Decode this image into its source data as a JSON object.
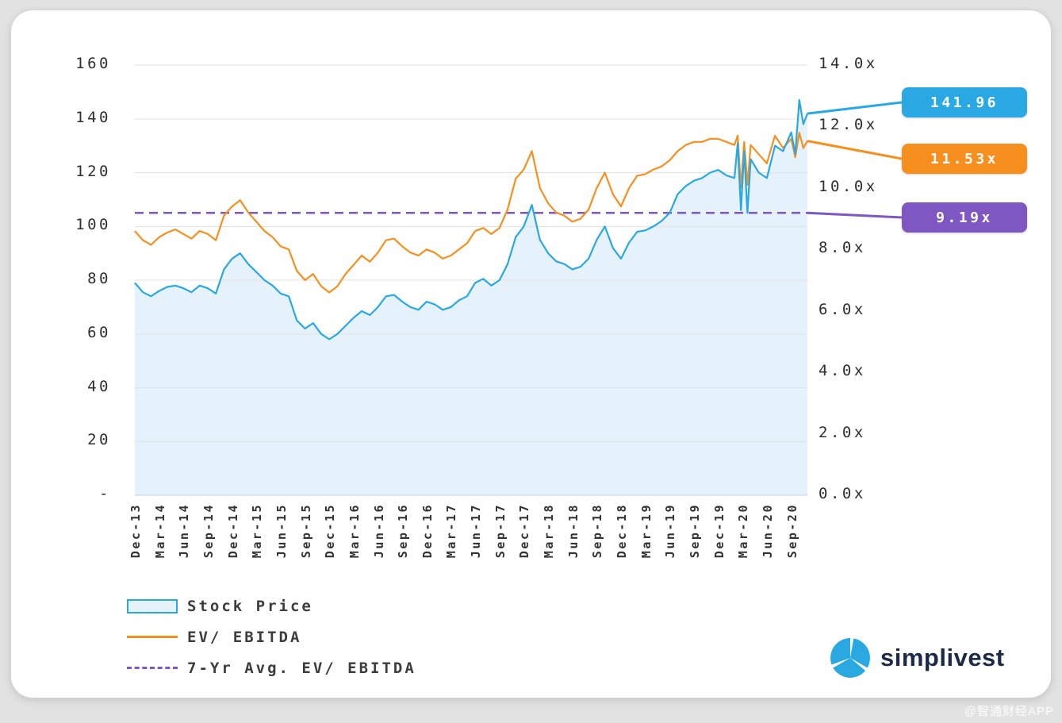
{
  "watermark": "@智通财经APP",
  "branding": {
    "logo_text": "simplivest",
    "logo_color": "#2AA9E0"
  },
  "chart_data": {
    "type": "line",
    "grid": "horizontal",
    "legend_position": "bottom-left",
    "x_axis": {
      "unit": "months since Dec-2013",
      "tick_positions": [
        0,
        3,
        6,
        9,
        12,
        15,
        18,
        21,
        24,
        27,
        30,
        33,
        36,
        39,
        42,
        45,
        48,
        51,
        54,
        57,
        60,
        63,
        66,
        69,
        72,
        75,
        78,
        81
      ],
      "tick_labels": [
        "Dec-13",
        "Mar-14",
        "Jun-14",
        "Sep-14",
        "Dec-14",
        "Mar-15",
        "Jun-15",
        "Sep-15",
        "Dec-15",
        "Mar-16",
        "Jun-16",
        "Sep-16",
        "Dec-16",
        "Mar-17",
        "Jun-17",
        "Sep-17",
        "Dec-17",
        "Mar-18",
        "Jun-18",
        "Sep-18",
        "Dec-18",
        "Mar-19",
        "Jun-19",
        "Sep-19",
        "Dec-19",
        "Mar-20",
        "Jun-20",
        "Sep-20"
      ]
    },
    "left_axis": {
      "min": 0,
      "max": 160,
      "tick_values": [
        160,
        140,
        120,
        100,
        80,
        60,
        40,
        20,
        0
      ],
      "tick_labels": [
        "160",
        "140",
        "120",
        "100",
        "80",
        "60",
        "40",
        "20",
        "-"
      ]
    },
    "right_axis": {
      "min": 0,
      "max": 14,
      "tick_values": [
        14,
        12,
        10,
        8,
        6,
        4,
        2,
        0
      ],
      "tick_labels": [
        "14.0x",
        "12.0x",
        "10.0x",
        "8.0x",
        "6.0x",
        "4.0x",
        "2.0x",
        "0.0x"
      ]
    },
    "x": [
      0,
      1,
      2,
      3,
      4,
      5,
      6,
      7,
      8,
      9,
      10,
      11,
      12,
      13,
      14,
      15,
      16,
      17,
      18,
      19,
      20,
      21,
      22,
      23,
      24,
      25,
      26,
      27,
      28,
      29,
      30,
      31,
      32,
      33,
      34,
      35,
      36,
      37,
      38,
      39,
      40,
      41,
      42,
      43,
      44,
      45,
      46,
      47,
      48,
      49,
      50,
      51,
      52,
      53,
      54,
      55,
      56,
      57,
      58,
      59,
      60,
      61,
      62,
      63,
      64,
      65,
      66,
      67,
      68,
      69,
      70,
      71,
      72,
      73,
      74,
      74.4,
      74.8,
      75.2,
      75.6,
      76,
      77,
      78,
      79,
      80,
      81,
      81.5,
      82,
      82.5,
      83
    ],
    "series": [
      {
        "name": "Stock Price",
        "axis": "left",
        "type": "area-line",
        "color": "#29A8E3",
        "area_fill": "#E6F2FB",
        "last_value": 141.96,
        "values": [
          79,
          75.5,
          74,
          76,
          77.5,
          78,
          77,
          75.5,
          78,
          77,
          75,
          84,
          88,
          90,
          86,
          83,
          80,
          78,
          75,
          74,
          65,
          62,
          64,
          60,
          58,
          60,
          63,
          66,
          68.5,
          67,
          70,
          74,
          74.5,
          72,
          70,
          69,
          72,
          71,
          69,
          70,
          72.5,
          74,
          79,
          80.5,
          78,
          80,
          86,
          96,
          100,
          108,
          95,
          90,
          87,
          86,
          84,
          85,
          88,
          95,
          100,
          92,
          88,
          94,
          98,
          98.5,
          100,
          102,
          105,
          112,
          115,
          117,
          118,
          120,
          121,
          119,
          118,
          131,
          106,
          128,
          105,
          125,
          120,
          118,
          130,
          128,
          135,
          127,
          147,
          138,
          141.96
        ]
      },
      {
        "name": "EV/ EBITDA",
        "axis": "right",
        "type": "line",
        "color": "#F78F1E",
        "last_value": 11.53,
        "values": [
          8.6,
          8.3,
          8.15,
          8.4,
          8.55,
          8.65,
          8.5,
          8.35,
          8.6,
          8.5,
          8.3,
          9.1,
          9.4,
          9.6,
          9.2,
          8.9,
          8.6,
          8.4,
          8.1,
          8,
          7.3,
          7,
          7.2,
          6.8,
          6.6,
          6.8,
          7.2,
          7.5,
          7.8,
          7.6,
          7.9,
          8.3,
          8.35,
          8.1,
          7.9,
          7.8,
          8,
          7.9,
          7.7,
          7.8,
          8,
          8.2,
          8.6,
          8.7,
          8.5,
          8.7,
          9.3,
          10.3,
          10.6,
          11.2,
          10,
          9.5,
          9.2,
          9.1,
          8.9,
          9,
          9.3,
          10,
          10.5,
          9.8,
          9.4,
          10,
          10.4,
          10.45,
          10.6,
          10.7,
          10.9,
          11.2,
          11.4,
          11.5,
          11.5,
          11.6,
          11.6,
          11.5,
          11.4,
          11.7,
          10,
          11.5,
          10.1,
          11.4,
          11.1,
          10.8,
          11.7,
          11.3,
          11.6,
          11,
          11.8,
          11.3,
          11.53
        ]
      },
      {
        "name": "7-Yr Avg. EV/ EBITDA",
        "axis": "right",
        "type": "dashed-constant",
        "color": "#7E57C2",
        "value": 9.19
      }
    ],
    "callouts": [
      {
        "label": "141.96",
        "color": "#29A8E3",
        "series": "Stock Price"
      },
      {
        "label": "11.53x",
        "color": "#F78F1E",
        "series": "EV/ EBITDA"
      },
      {
        "label": "9.19x",
        "color": "#7E57C2",
        "series": "7-Yr Avg. EV/ EBITDA"
      }
    ]
  }
}
